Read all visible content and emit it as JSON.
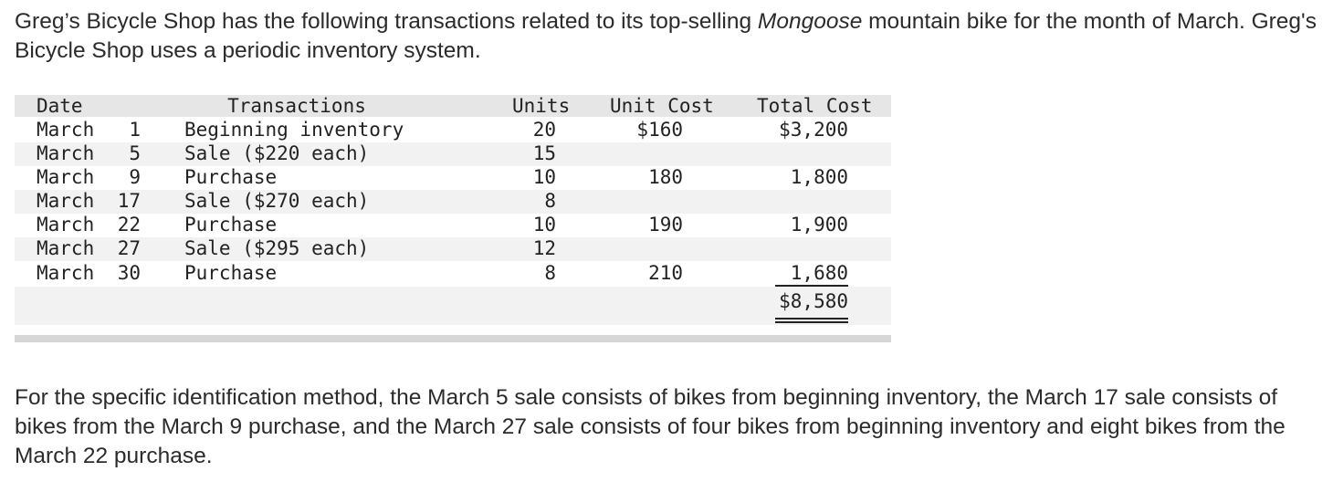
{
  "intro": {
    "part1": "Greg’s Bicycle Shop has the following transactions related to its top-selling ",
    "brand": "Mongoose",
    "part2": " mountain bike for the month of March. Greg's Bicycle Shop uses a periodic inventory system."
  },
  "table": {
    "headers": {
      "date": "Date",
      "transactions": "Transactions",
      "units": "Units",
      "unit_cost": "Unit Cost",
      "total_cost": "Total Cost"
    },
    "rows": [
      {
        "month": "March",
        "day": "1",
        "transaction": "Beginning inventory",
        "units": "20",
        "unit_cost": "$160",
        "total_cost": "$3,200"
      },
      {
        "month": "March",
        "day": "5",
        "transaction": "Sale ($220 each)",
        "units": "15",
        "unit_cost": "",
        "total_cost": ""
      },
      {
        "month": "March",
        "day": "9",
        "transaction": "Purchase",
        "units": "10",
        "unit_cost": "180",
        "total_cost": "1,800"
      },
      {
        "month": "March",
        "day": "17",
        "transaction": "Sale ($270 each)",
        "units": "8",
        "unit_cost": "",
        "total_cost": ""
      },
      {
        "month": "March",
        "day": "22",
        "transaction": "Purchase",
        "units": "10",
        "unit_cost": "190",
        "total_cost": "1,900"
      },
      {
        "month": "March",
        "day": "27",
        "transaction": "Sale ($295 each)",
        "units": "12",
        "unit_cost": "",
        "total_cost": ""
      },
      {
        "month": "March",
        "day": "30",
        "transaction": "Purchase",
        "units": "8",
        "unit_cost": "210",
        "total_cost": "1,680"
      }
    ],
    "grand_total": "$8,580"
  },
  "outro": "For the specific identification method, the March 5 sale consists of bikes from beginning inventory, the March 17 sale consists of bikes from the March 9 purchase, and the March 27 sale consists of four bikes from beginning inventory and eight bikes from the March 22 purchase."
}
